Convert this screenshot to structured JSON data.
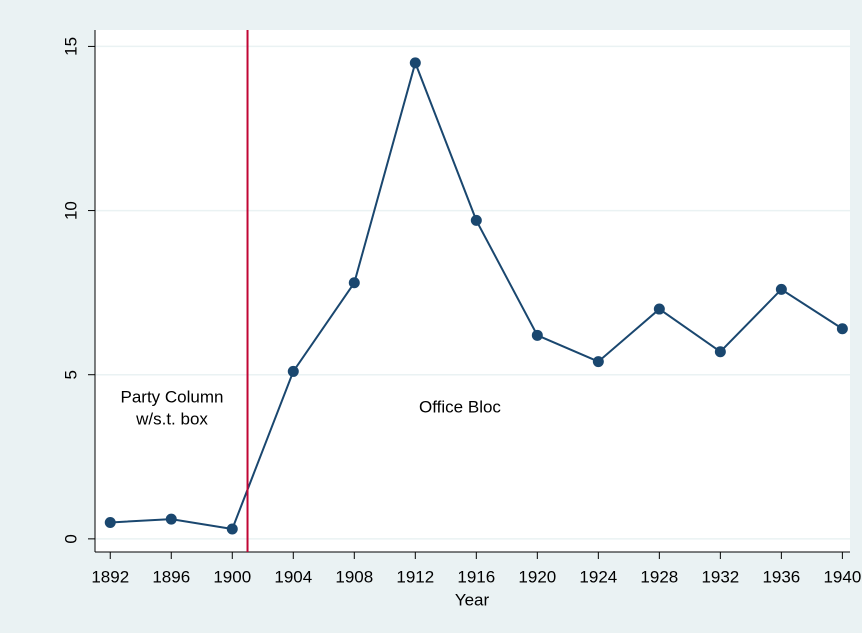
{
  "chart_data": {
    "type": "line",
    "x_label": "Year",
    "x": [
      1892,
      1896,
      1900,
      1904,
      1908,
      1912,
      1916,
      1920,
      1924,
      1928,
      1932,
      1936,
      1940
    ],
    "series": [
      {
        "color": "#1a476f",
        "values": [
          0.5,
          0.6,
          0.3,
          5.1,
          7.8,
          14.5,
          9.7,
          6.2,
          5.4,
          7.0,
          5.7,
          7.6,
          6.4
        ]
      }
    ],
    "xlim": [
      1891,
      1940.5
    ],
    "xticks": [
      1892,
      1896,
      1900,
      1904,
      1908,
      1912,
      1916,
      1920,
      1924,
      1928,
      1932,
      1936,
      1940
    ],
    "ylim": [
      -0.4,
      15.5
    ],
    "yticks": [
      0,
      5,
      10,
      15
    ],
    "grid": true,
    "xline": {
      "value": 1901,
      "color": "#c10534"
    },
    "annotations": [
      "Party Column",
      "w/s.t. box",
      "Office Bloc"
    ]
  }
}
